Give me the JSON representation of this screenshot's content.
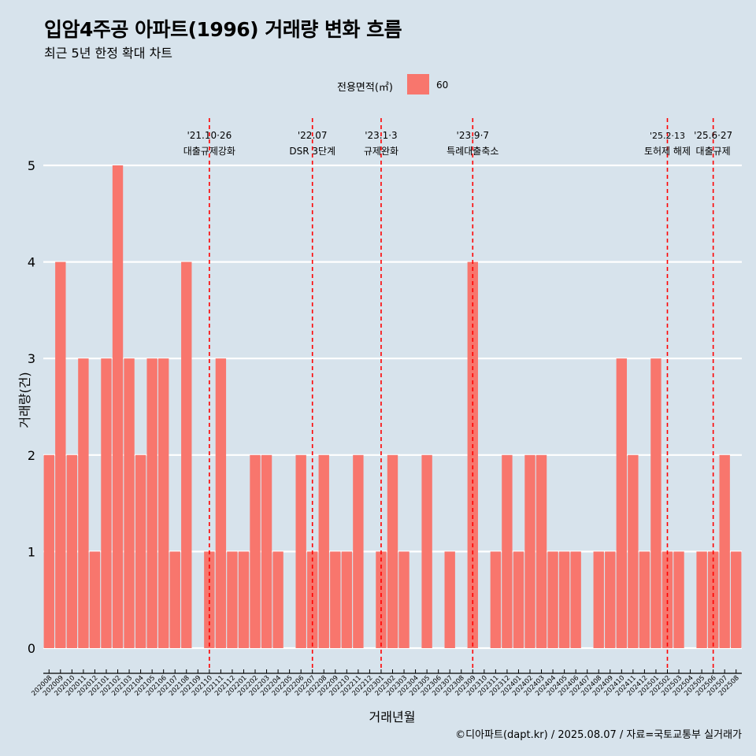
{
  "chart_data": {
    "type": "bar",
    "title": "입암4주공 아파트(1996) 거래량 변화 흐름",
    "subtitle": "최근 5년 한정 확대 차트",
    "xlabel": "거래년월",
    "ylabel": "거래량(건)",
    "ylim": [
      0,
      5
    ],
    "yticks": [
      0,
      1,
      2,
      3,
      4,
      5
    ],
    "grid": true,
    "legend": {
      "title": "전용면적(㎡)",
      "position": "top",
      "entries": [
        "60"
      ]
    },
    "categories": [
      "202008",
      "202009",
      "202010",
      "202011",
      "202012",
      "202101",
      "202102",
      "202103",
      "202104",
      "202105",
      "202106",
      "202107",
      "202108",
      "202109",
      "202110",
      "202111",
      "202112",
      "202201",
      "202202",
      "202203",
      "202204",
      "202205",
      "202206",
      "202207",
      "202208",
      "202209",
      "202210",
      "202211",
      "202212",
      "202301",
      "202302",
      "202303",
      "202304",
      "202305",
      "202306",
      "202307",
      "202308",
      "202309",
      "202310",
      "202311",
      "202312",
      "202401",
      "202402",
      "202403",
      "202404",
      "202405",
      "202406",
      "202407",
      "202408",
      "202409",
      "202410",
      "202411",
      "202412",
      "202501",
      "202502",
      "202503",
      "202504",
      "202505",
      "202506",
      "202507",
      "202508"
    ],
    "series": [
      {
        "name": "60",
        "color": "#f8766d",
        "values": [
          2,
          4,
          2,
          3,
          1,
          3,
          5,
          3,
          2,
          3,
          3,
          1,
          4,
          0,
          1,
          3,
          1,
          1,
          2,
          2,
          1,
          0,
          2,
          1,
          2,
          1,
          1,
          2,
          0,
          1,
          2,
          1,
          0,
          2,
          0,
          1,
          0,
          4,
          0,
          1,
          2,
          1,
          2,
          2,
          1,
          1,
          1,
          0,
          1,
          1,
          3,
          2,
          1,
          3,
          1,
          1,
          0,
          1,
          1,
          2,
          1
        ]
      }
    ],
    "annotations": [
      {
        "x": "202110",
        "date": "'21.10·26",
        "label": "대출규제강화"
      },
      {
        "x": "202207",
        "date": "'22.07",
        "label": "DSR 3단계"
      },
      {
        "x": "202301",
        "date": "'23.1·3",
        "label": "규제완화"
      },
      {
        "x": "202309",
        "date": "'23.9·7",
        "label": "특례대출축소"
      },
      {
        "x": "202502",
        "date": "'25.2·13",
        "label": "토허제 해제"
      },
      {
        "x": "202506",
        "date": "'25.6·27",
        "label": "대출규제"
      }
    ]
  },
  "caption": "©디아파트(dapt.kr) / 2025.08.07 / 자료=국토교통부 실거래가",
  "colors": {
    "background": "#d7e3ec",
    "bar": "#f8766d",
    "event_line": "#ff0000",
    "grid": "#ffffff"
  }
}
